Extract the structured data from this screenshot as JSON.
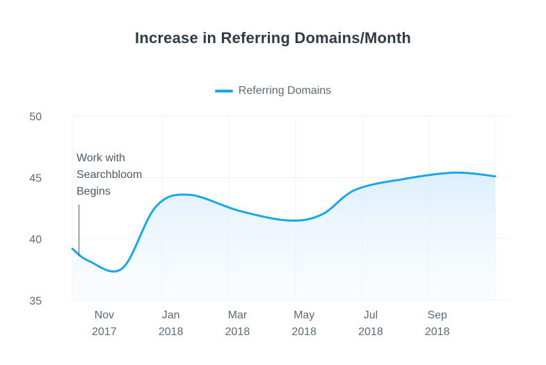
{
  "chart_data": {
    "type": "area",
    "title": "Increase in Referring Domains/Month",
    "xlabel": "",
    "ylabel": "",
    "ylim": [
      35,
      50
    ],
    "yticks": [
      35,
      40,
      45,
      50
    ],
    "xticks": [
      {
        "month": "Nov",
        "year": "2017",
        "x": 1
      },
      {
        "month": "Jan",
        "year": "2018",
        "x": 3
      },
      {
        "month": "Mar",
        "year": "2018",
        "x": 5
      },
      {
        "month": "May",
        "year": "2018",
        "x": 7
      },
      {
        "month": "Jul",
        "year": "2018",
        "x": 9
      },
      {
        "month": "Sep",
        "year": "2018",
        "x": 11
      }
    ],
    "xlim": [
      0.5,
      13.2
    ],
    "grid": true,
    "legend_position": "top-center",
    "series": [
      {
        "name": "Referring Domains",
        "color": "#1aa6e8",
        "points": [
          {
            "x": 0.5,
            "y": 39.2
          },
          {
            "x": 1.0,
            "y": 38.2
          },
          {
            "x": 2.0,
            "y": 37.6
          },
          {
            "x": 3.0,
            "y": 42.6
          },
          {
            "x": 4.0,
            "y": 43.6
          },
          {
            "x": 5.5,
            "y": 42.3
          },
          {
            "x": 7.0,
            "y": 41.5
          },
          {
            "x": 8.0,
            "y": 42.0
          },
          {
            "x": 9.0,
            "y": 44.0
          },
          {
            "x": 10.5,
            "y": 44.9
          },
          {
            "x": 12.0,
            "y": 45.4
          },
          {
            "x": 13.2,
            "y": 45.1
          }
        ]
      }
    ],
    "annotation": {
      "lines": [
        "Work with",
        "Searchbloom",
        "Begins"
      ],
      "x": 0.7,
      "y_top": 42.8,
      "y_bottom": 38.6
    }
  }
}
